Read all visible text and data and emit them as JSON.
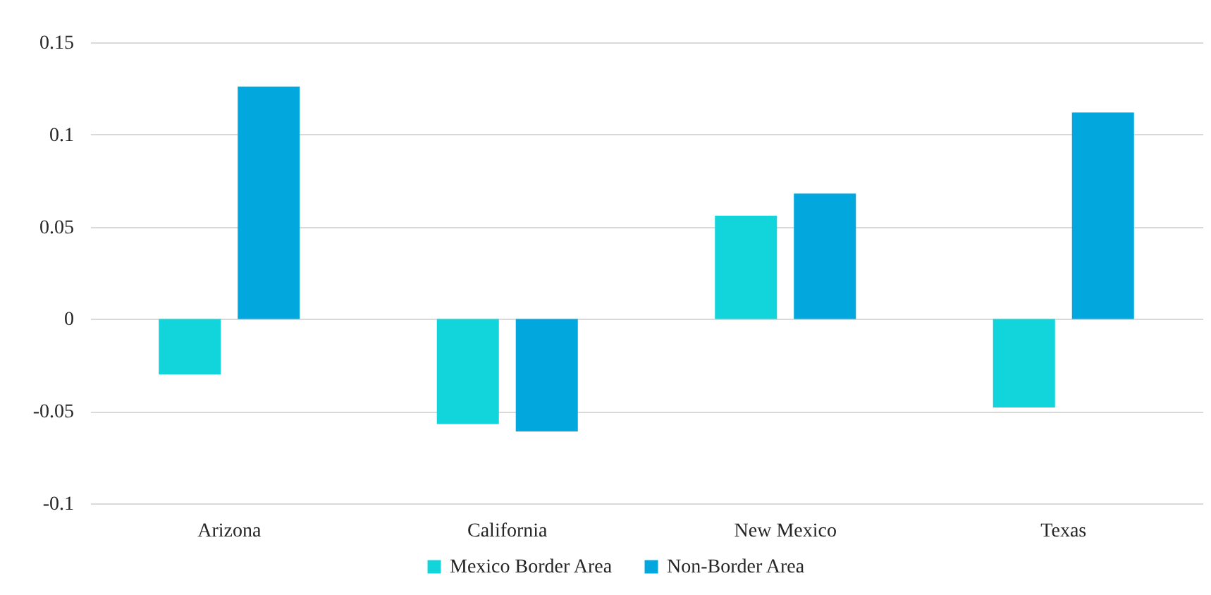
{
  "chart_data": {
    "type": "bar",
    "categories": [
      "Arizona",
      "California",
      "New Mexico",
      "Texas"
    ],
    "series": [
      {
        "name": "Mexico Border Area",
        "color": "#12d5db",
        "values": [
          -0.03,
          -0.057,
          0.056,
          -0.048
        ]
      },
      {
        "name": "Non-Border Area",
        "color": "#02a8dd",
        "values": [
          0.126,
          -0.061,
          0.068,
          0.112
        ]
      }
    ],
    "ylim": [
      -0.1,
      0.15
    ],
    "yticks": [
      -0.1,
      -0.05,
      0,
      0.05,
      0.1,
      0.15
    ],
    "grid": "y",
    "legend": "bottom"
  }
}
